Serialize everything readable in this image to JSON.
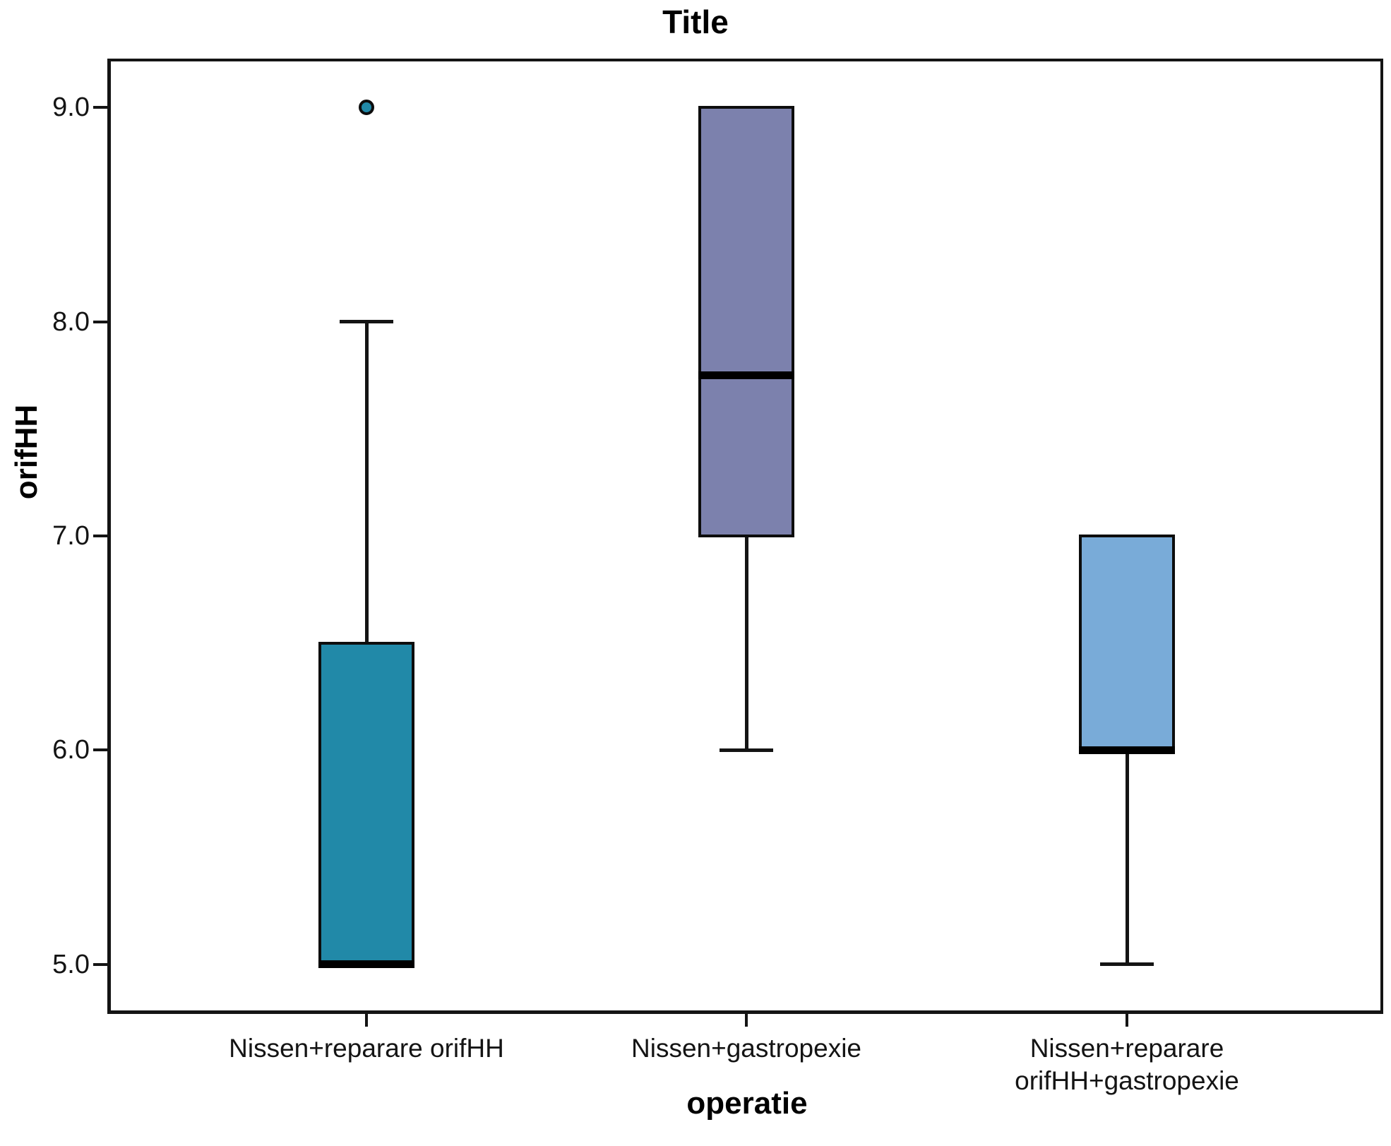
{
  "chart_data": {
    "type": "box",
    "title": "Title",
    "xlabel": "operatie",
    "ylabel": "orifHH",
    "ylim": [
      4.785,
      9.215
    ],
    "yticks": [
      5.0,
      6.0,
      7.0,
      8.0,
      9.0
    ],
    "ytick_labels": [
      "5.0",
      "6.0",
      "7.0",
      "8.0",
      "9.0"
    ],
    "grid": false,
    "legend": "none",
    "categories": [
      "Nissen+reparare orifHH",
      "Nissen+gastropexie",
      "Nissen+reparare\norifHH+gastropexie"
    ],
    "series": [
      {
        "category": "Nissen+reparare orifHH",
        "min": 5.0,
        "q1": 5.0,
        "median": 5.0,
        "q3": 6.5,
        "max": 8.0,
        "outliers": [
          9.0
        ],
        "color": "#2189A8"
      },
      {
        "category": "Nissen+gastropexie",
        "min": 6.0,
        "q1": 7.0,
        "median": 7.75,
        "q3": 9.0,
        "max": 9.0,
        "outliers": [],
        "color": "#7C81AD"
      },
      {
        "category": "Nissen+reparare\norifHH+gastropexie",
        "min": 5.0,
        "q1": 6.0,
        "median": 6.0,
        "q3": 7.0,
        "max": 7.0,
        "outliers": [],
        "color": "#79ABD8"
      }
    ]
  }
}
